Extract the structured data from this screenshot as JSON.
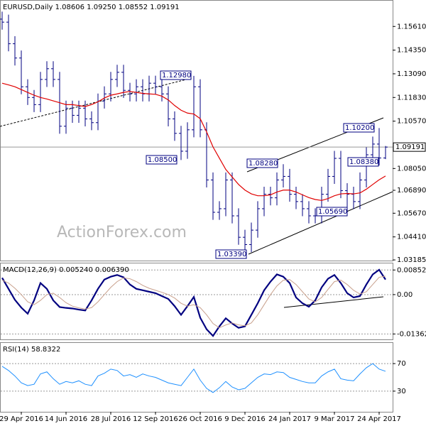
{
  "chart_data": [
    {
      "type": "ohlc",
      "title": "EURUSD,Daily",
      "last_ohlc": [
        "1.08606",
        "1.09250",
        "1.08552",
        "1.09191"
      ],
      "watermark": "ActionForex.com",
      "color": "#000080",
      "categories": [
        null,
        null,
        null,
        "29 Apr 2016",
        null,
        null,
        null,
        null,
        null,
        null,
        "14 Jun 2016",
        null,
        null,
        null,
        null,
        null,
        null,
        "28 Jul 2016",
        null,
        null,
        null,
        null,
        null,
        null,
        "12 Sep 2016",
        null,
        null,
        null,
        null,
        null,
        null,
        "26 Oct 2016",
        null,
        null,
        null,
        null,
        null,
        null,
        "9 Dec 2016",
        null,
        null,
        null,
        null,
        null,
        null,
        "24 Jan 2017",
        null,
        null,
        null,
        null,
        null,
        null,
        "9 Mar 2017",
        null,
        null,
        null,
        null,
        null,
        null,
        "24 Apr 2017",
        null
      ],
      "open": [
        1.16,
        1.1584,
        1.1469,
        1.1393,
        1.124,
        1.1183,
        1.1145,
        1.1279,
        1.1336,
        1.1279,
        1.103,
        1.1126,
        1.1088,
        1.1126,
        1.1069,
        1.1049,
        1.1164,
        1.1202,
        1.1279,
        1.1317,
        1.1221,
        1.1202,
        1.124,
        1.1202,
        1.1259,
        1.124,
        1.1202,
        1.1069,
        1.0992,
        1.0897,
        1.1011,
        1.124,
        1.1011,
        1.0744,
        1.0572,
        1.0591,
        1.0744,
        1.0553,
        1.0439,
        1.04,
        1.0477,
        1.0591,
        1.0668,
        1.0649,
        1.0744,
        1.0763,
        1.0668,
        1.0629,
        1.0591,
        1.0553,
        1.0553,
        1.0668,
        1.0763,
        1.0859,
        1.0687,
        1.0668,
        1.0629,
        1.0744,
        1.0878,
        1.0935,
        1.0861
      ],
      "high": [
        1.164,
        1.1624,
        1.1509,
        1.1433,
        1.128,
        1.1223,
        1.1319,
        1.1376,
        1.1376,
        1.1319,
        1.1166,
        1.1166,
        1.1166,
        1.1166,
        1.1109,
        1.1204,
        1.1242,
        1.1319,
        1.1357,
        1.1357,
        1.1261,
        1.128,
        1.128,
        1.1299,
        1.1299,
        1.128,
        1.1242,
        1.1109,
        1.1032,
        1.1051,
        1.1298,
        1.128,
        1.1051,
        1.0784,
        1.0631,
        1.0784,
        1.0784,
        1.0593,
        1.0479,
        1.0517,
        1.0631,
        1.0708,
        1.0708,
        1.0784,
        1.0828,
        1.0803,
        1.0708,
        1.0669,
        1.0631,
        1.0593,
        1.0708,
        1.0803,
        1.0899,
        1.0899,
        1.0727,
        1.0708,
        1.0784,
        1.0918,
        1.0975,
        1.102,
        1.0925
      ],
      "low": [
        1.1544,
        1.1429,
        1.1353,
        1.12,
        1.1143,
        1.1105,
        1.1105,
        1.1239,
        1.1239,
        1.099,
        1.099,
        1.1048,
        1.1048,
        1.1029,
        1.1009,
        1.1009,
        1.1124,
        1.1162,
        1.1239,
        1.1181,
        1.1162,
        1.1162,
        1.1162,
        1.1162,
        1.12,
        1.1162,
        1.1029,
        1.0952,
        1.085,
        1.0857,
        1.0971,
        1.0971,
        1.0704,
        1.0532,
        1.0532,
        1.0551,
        1.0513,
        1.0399,
        1.0339,
        1.036,
        1.0437,
        1.0551,
        1.0609,
        1.0609,
        1.0704,
        1.0628,
        1.0589,
        1.0551,
        1.0513,
        1.0513,
        1.0513,
        1.0628,
        1.0723,
        1.0647,
        1.0569,
        1.0589,
        1.0589,
        1.0704,
        1.0838,
        1.0821,
        1.0855
      ],
      "close": [
        1.1584,
        1.1469,
        1.1393,
        1.124,
        1.1183,
        1.1145,
        1.1279,
        1.1336,
        1.1279,
        1.103,
        1.1126,
        1.1088,
        1.1126,
        1.1069,
        1.1049,
        1.1164,
        1.1202,
        1.1279,
        1.1317,
        1.1221,
        1.1202,
        1.124,
        1.1202,
        1.1259,
        1.124,
        1.1202,
        1.1069,
        1.0992,
        1.0897,
        1.1011,
        1.124,
        1.1011,
        1.0744,
        1.0572,
        1.0591,
        1.0744,
        1.0553,
        1.0439,
        1.04,
        1.0477,
        1.0591,
        1.0668,
        1.0649,
        1.0744,
        1.0763,
        1.0668,
        1.0629,
        1.0591,
        1.0553,
        1.0553,
        1.0668,
        1.0763,
        1.0859,
        1.0687,
        1.0668,
        1.0629,
        1.0744,
        1.0878,
        1.0935,
        1.0861,
        1.0919
      ],
      "ma": {
        "color": "#e00000",
        "values": [
          1.1259,
          1.125,
          1.124,
          1.1225,
          1.121,
          1.1195,
          1.1183,
          1.1175,
          1.1165,
          1.1155,
          1.1145,
          1.1145,
          1.114,
          1.1135,
          1.1145,
          1.116,
          1.118,
          1.1195,
          1.1202,
          1.121,
          1.1215,
          1.121,
          1.1205,
          1.1202,
          1.12,
          1.119,
          1.117,
          1.114,
          1.1115,
          1.11,
          1.1095,
          1.107,
          1.1,
          1.092,
          1.086,
          1.08,
          1.076,
          1.072,
          1.069,
          1.067,
          1.066,
          1.066,
          1.0665,
          1.068,
          1.069,
          1.069,
          1.068,
          1.0665,
          1.065,
          1.064,
          1.0635,
          1.0645,
          1.066,
          1.067,
          1.0672,
          1.067,
          1.0675,
          1.0695,
          1.072,
          1.0745,
          1.0765
        ]
      },
      "annotations": [
        "1.12980",
        "1.08500",
        "1.08280",
        "1.03390",
        "1.05690",
        "1.10200",
        "1.08380"
      ],
      "ylim": [
        1.0315,
        1.1698
      ],
      "yticks": [
        {
          "value": 1.1561,
          "label": "1.15610"
        },
        {
          "value": 1.1435,
          "label": "1.14350"
        },
        {
          "value": 1.1309,
          "label": "1.13090"
        },
        {
          "value": 1.1183,
          "label": "1.11830"
        },
        {
          "value": 1.1057,
          "label": "1.10570"
        },
        {
          "value": 1.0805,
          "label": "1.08050"
        },
        {
          "value": 1.0689,
          "label": "1.06890"
        },
        {
          "value": 1.0567,
          "label": "1.05670"
        },
        {
          "value": 1.0441,
          "label": "1.04410"
        },
        {
          "value": 1.03185,
          "label": "1.03185"
        }
      ]
    },
    {
      "type": "line",
      "title": "MACD(12,26,9)",
      "value_texts": [
        "0.005240",
        "0.006390"
      ],
      "series": [
        {
          "color": "#000080",
          "values": [
            0.0058,
            0.002,
            -0.0018,
            -0.0045,
            -0.0066,
            -0.002,
            0.004,
            0.002,
            -0.002,
            -0.0043,
            -0.0046,
            -0.0048,
            -0.0052,
            -0.0055,
            -0.002,
            0.002,
            0.0052,
            0.0062,
            0.0068,
            0.006,
            0.0035,
            0.002,
            0.0015,
            0.001,
            0.0005,
            -0.0005,
            -0.0015,
            -0.004,
            -0.007,
            -0.004,
            -0.0008,
            -0.008,
            -0.012,
            -0.0143,
            -0.011,
            -0.0082,
            -0.01,
            -0.0115,
            -0.011,
            -0.007,
            -0.003,
            0.0015,
            0.0045,
            0.007,
            0.0062,
            0.004,
            -0.001,
            -0.003,
            -0.0042,
            -0.002,
            0.0025,
            0.0055,
            0.0068,
            0.004,
            0.0005,
            -0.001,
            -0.0005,
            0.0035,
            0.007,
            0.0086,
            0.0052
          ]
        },
        {
          "color": "#c8a08c",
          "values": [
            0.005,
            0.004,
            0.0022,
            0.0,
            -0.0025,
            -0.0035,
            -0.002,
            0.0,
            0.0005,
            -0.001,
            -0.0028,
            -0.004,
            -0.0046,
            -0.005,
            -0.0045,
            -0.0025,
            0.0,
            0.0025,
            0.0045,
            0.0058,
            0.0055,
            0.0045,
            0.0032,
            0.0022,
            0.0015,
            0.0008,
            0.0,
            -0.0012,
            -0.003,
            -0.004,
            -0.0035,
            -0.0045,
            -0.007,
            -0.01,
            -0.0115,
            -0.0105,
            -0.0098,
            -0.0105,
            -0.0108,
            -0.0098,
            -0.007,
            -0.0035,
            0.0,
            0.003,
            0.005,
            0.0052,
            0.0035,
            0.001,
            -0.0015,
            -0.0025,
            -0.001,
            0.0018,
            0.0045,
            0.005,
            0.0035,
            0.0015,
            0.0002,
            0.001,
            0.0035,
            0.006,
            0.0064
          ]
        }
      ],
      "ylim": [
        -0.0155,
        0.0108
      ],
      "yticks": [
        0.008521,
        {
          "value": 0,
          "label": "0.00"
        },
        -0.013624
      ],
      "grid": true
    },
    {
      "type": "line",
      "title": "RSI(14)",
      "value_texts": [
        "58.8322"
      ],
      "series": [
        {
          "color": "#1e90ff",
          "values": [
            66,
            60,
            52,
            42,
            38,
            40,
            55,
            58,
            48,
            40,
            44,
            42,
            45,
            40,
            38,
            52,
            56,
            62,
            60,
            52,
            54,
            50,
            55,
            52,
            50,
            46,
            42,
            40,
            38,
            50,
            62,
            46,
            34,
            28,
            35,
            44,
            36,
            32,
            34,
            42,
            50,
            55,
            54,
            58,
            57,
            50,
            47,
            44,
            42,
            42,
            52,
            58,
            62,
            48,
            46,
            45,
            55,
            64,
            70,
            62,
            58.8322
          ]
        }
      ],
      "ylim": [
        0,
        100
      ],
      "yticks": [
        70,
        30
      ],
      "grid": true
    }
  ]
}
